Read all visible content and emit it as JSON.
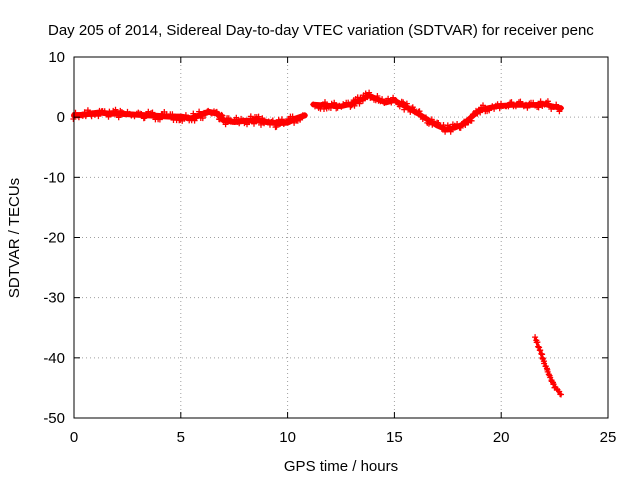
{
  "chart_data": {
    "type": "scatter",
    "title": "Day 205 of 2014, Sidereal Day-to-day VTEC variation (SDTVAR) for receiver penc",
    "xlabel": "GPS time / hours",
    "ylabel": "SDTVAR / TECUs",
    "xlim": [
      0,
      25
    ],
    "ylim": [
      -50,
      10
    ],
    "x_ticks": [
      0,
      5,
      10,
      15,
      20,
      25
    ],
    "x_tick_labels": [
      "0",
      "5",
      "10",
      "15",
      "20",
      "25"
    ],
    "y_ticks": [
      -50,
      -40,
      -30,
      -20,
      -10,
      0,
      10
    ],
    "y_tick_labels": [
      "-50",
      "-40",
      "-30",
      "-20",
      "-10",
      "0",
      "10"
    ],
    "grid": true,
    "series": [
      {
        "name": "SDTVAR",
        "color": "#ff0000",
        "marker": "plus",
        "segments": [
          {
            "x": [
              0.0,
              0.4,
              0.8,
              1.2,
              1.6,
              2.0,
              2.5,
              3.0,
              3.5,
              4.0,
              4.5,
              5.0,
              5.5,
              6.0,
              6.3,
              6.7,
              7.0,
              7.5,
              8.0,
              8.5,
              9.0,
              9.5,
              10.0,
              10.4,
              10.8
            ],
            "y": [
              0.3,
              0.4,
              0.6,
              0.8,
              0.6,
              0.6,
              0.5,
              0.4,
              0.3,
              0.2,
              0.1,
              0.1,
              -0.2,
              0.5,
              0.9,
              0.6,
              -0.5,
              -0.8,
              -0.6,
              -0.5,
              -0.8,
              -1.0,
              -0.9,
              -0.2,
              0.3
            ],
            "spread": 1.1
          },
          {
            "x": [
              11.2,
              11.6,
              12.0,
              12.5,
              13.0,
              13.5,
              13.8,
              14.2,
              14.6,
              15.0,
              15.4,
              15.8,
              16.2,
              16.6,
              17.0,
              17.4,
              17.8,
              18.2,
              18.6,
              19.0,
              19.5,
              20.0,
              20.5,
              21.0,
              21.5,
              22.0,
              22.4,
              22.8
            ],
            "y": [
              2.1,
              2.0,
              1.9,
              1.8,
              2.2,
              3.0,
              3.6,
              3.0,
              2.4,
              2.8,
              2.0,
              1.2,
              0.4,
              -0.5,
              -1.4,
              -2.0,
              -1.8,
              -1.2,
              0.0,
              1.2,
              1.6,
              1.9,
              2.0,
              2.0,
              2.0,
              2.2,
              1.8,
              1.5
            ],
            "spread": 1.0
          },
          {
            "x": [
              21.6,
              21.8,
              22.0,
              22.2,
              22.4,
              22.6,
              22.8
            ],
            "y": [
              -36.8,
              -38.7,
              -40.6,
              -42.4,
              -44.0,
              -45.3,
              -46.1
            ],
            "spread": 0.4
          }
        ]
      }
    ]
  }
}
